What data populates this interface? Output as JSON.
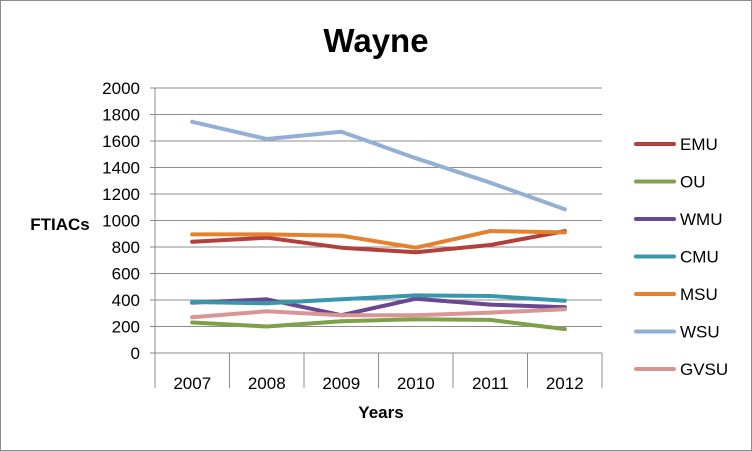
{
  "chart_data": {
    "type": "line",
    "title": "Wayne",
    "xlabel": "Years",
    "ylabel": "FTIACs",
    "categories": [
      "2007",
      "2008",
      "2009",
      "2010",
      "2011",
      "2012"
    ],
    "ylim": [
      0,
      2000
    ],
    "yticks": [
      0,
      200,
      400,
      600,
      800,
      1000,
      1200,
      1400,
      1600,
      1800,
      2000
    ],
    "grid": true,
    "legend_position": "right",
    "series": [
      {
        "name": "EMU",
        "color": "#b1403d",
        "values": [
          840,
          870,
          795,
          760,
          815,
          920
        ]
      },
      {
        "name": "OU",
        "color": "#7fa04a",
        "values": [
          230,
          200,
          240,
          255,
          250,
          180
        ]
      },
      {
        "name": "WMU",
        "color": "#6a4790",
        "values": [
          380,
          405,
          285,
          410,
          365,
          345
        ]
      },
      {
        "name": "CMU",
        "color": "#3996ac",
        "values": [
          385,
          375,
          405,
          435,
          430,
          395
        ]
      },
      {
        "name": "MSU",
        "color": "#e5802c",
        "values": [
          895,
          895,
          885,
          795,
          920,
          910
        ]
      },
      {
        "name": "WSU",
        "color": "#94afd6",
        "values": [
          1745,
          1615,
          1670,
          1470,
          1285,
          1085
        ]
      },
      {
        "name": "GVSU",
        "color": "#d79595",
        "values": [
          270,
          315,
          285,
          285,
          305,
          330
        ]
      }
    ]
  }
}
